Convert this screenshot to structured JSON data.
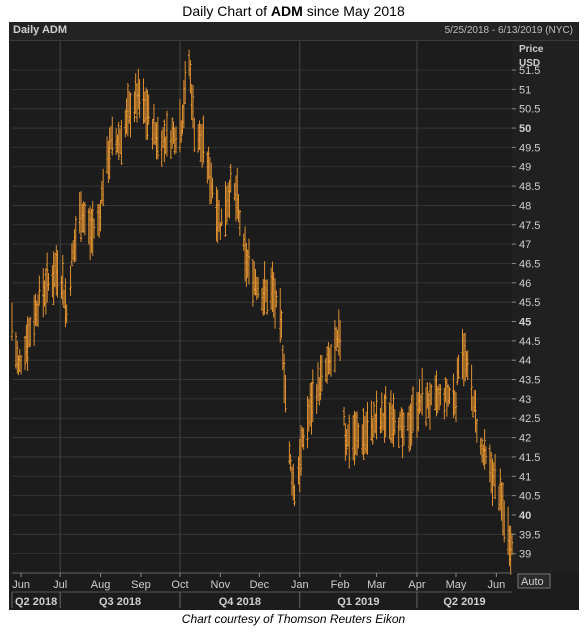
{
  "title": {
    "prefix": "Daily Chart of ",
    "ticker": "ADM",
    "suffix": " since May 2018"
  },
  "caption": "Chart courtesy of Thomson Reuters Eikon",
  "colors": {
    "background": "#1c1c1c",
    "bars": "#f39c32",
    "grid": "#3a3a3a",
    "text": "#cfcfcf"
  },
  "chart_data": {
    "type": "ohlc",
    "chart_label": "Daily ADM",
    "date_range": "5/25/2018 - 6/13/2019 (NYC)",
    "y_axis_title": [
      "Price",
      "USD"
    ],
    "ylim": [
      38.5,
      52.25
    ],
    "y_ticks": [
      39,
      39.5,
      40,
      40.5,
      41,
      41.5,
      42,
      42.5,
      43,
      43.5,
      44,
      44.5,
      45,
      45.5,
      46,
      46.5,
      47,
      47.5,
      48,
      48.5,
      49,
      49.5,
      50,
      50.5,
      51,
      51.5
    ],
    "y_ticks_bold": [
      40,
      45,
      50
    ],
    "scale_button": "Auto",
    "x_range": [
      "2018-05-25",
      "2019-06-13"
    ],
    "month_ticks": [
      {
        "label": "Jun",
        "date": "2018-06-01"
      },
      {
        "label": "Jul",
        "date": "2018-07-01"
      },
      {
        "label": "Aug",
        "date": "2018-08-01"
      },
      {
        "label": "Sep",
        "date": "2018-09-01"
      },
      {
        "label": "Oct",
        "date": "2018-10-01"
      },
      {
        "label": "Nov",
        "date": "2018-11-01"
      },
      {
        "label": "Dec",
        "date": "2018-12-01"
      },
      {
        "label": "Jan",
        "date": "2019-01-01"
      },
      {
        "label": "Feb",
        "date": "2019-02-01"
      },
      {
        "label": "Mar",
        "date": "2019-03-01"
      },
      {
        "label": "Apr",
        "date": "2019-04-01"
      },
      {
        "label": "May",
        "date": "2019-05-01"
      },
      {
        "label": "Jun",
        "date": "2019-06-01"
      }
    ],
    "quarters": [
      {
        "label": "Q2 2018",
        "start": "2018-05-25",
        "end": "2018-07-01"
      },
      {
        "label": "Q3 2018",
        "start": "2018-07-01",
        "end": "2018-10-01"
      },
      {
        "label": "Q4 2018",
        "start": "2018-10-01",
        "end": "2019-01-01"
      },
      {
        "label": "Q1 2019",
        "start": "2019-01-01",
        "end": "2019-04-01"
      },
      {
        "label": "Q2 2019",
        "start": "2019-04-01",
        "end": "2019-06-13"
      }
    ],
    "price_path": [
      [
        "2018-05-25",
        45.0
      ],
      [
        "2018-05-30",
        43.8
      ],
      [
        "2018-06-08",
        44.8
      ],
      [
        "2018-06-15",
        45.6
      ],
      [
        "2018-06-22",
        46.0
      ],
      [
        "2018-06-29",
        46.4
      ],
      [
        "2018-07-03",
        46.0
      ],
      [
        "2018-07-06",
        45.2
      ],
      [
        "2018-07-10",
        46.6
      ],
      [
        "2018-07-17",
        47.9
      ],
      [
        "2018-07-24",
        47.3
      ],
      [
        "2018-07-31",
        47.6
      ],
      [
        "2018-08-03",
        48.6
      ],
      [
        "2018-08-09",
        49.6
      ],
      [
        "2018-08-16",
        49.7
      ],
      [
        "2018-08-24",
        50.5
      ],
      [
        "2018-08-30",
        50.8
      ],
      [
        "2018-09-07",
        50.3
      ],
      [
        "2018-09-14",
        49.7
      ],
      [
        "2018-09-21",
        49.7
      ],
      [
        "2018-09-28",
        49.9
      ],
      [
        "2018-10-02",
        50.1
      ],
      [
        "2018-10-05",
        51.0
      ],
      [
        "2018-10-08",
        51.7
      ],
      [
        "2018-10-12",
        50.0
      ],
      [
        "2018-10-19",
        49.5
      ],
      [
        "2018-10-26",
        48.5
      ],
      [
        "2018-11-01",
        47.5
      ],
      [
        "2018-11-09",
        48.5
      ],
      [
        "2018-11-14",
        48.1
      ],
      [
        "2018-11-20",
        46.6
      ],
      [
        "2018-11-26",
        46.2
      ],
      [
        "2018-12-04",
        45.7
      ],
      [
        "2018-12-11",
        45.8
      ],
      [
        "2018-12-18",
        44.8
      ],
      [
        "2018-12-24",
        41.5
      ],
      [
        "2018-12-28",
        40.6
      ],
      [
        "2019-01-04",
        42.0
      ],
      [
        "2019-01-11",
        43.0
      ],
      [
        "2019-01-18",
        43.5
      ],
      [
        "2019-01-25",
        44.0
      ],
      [
        "2019-02-01",
        44.6
      ],
      [
        "2019-02-05",
        42.0
      ],
      [
        "2019-02-12",
        42.0
      ],
      [
        "2019-02-20",
        42.1
      ],
      [
        "2019-02-28",
        42.4
      ],
      [
        "2019-03-07",
        42.5
      ],
      [
        "2019-03-15",
        42.6
      ],
      [
        "2019-03-22",
        42.0
      ],
      [
        "2019-03-29",
        42.6
      ],
      [
        "2019-04-05",
        43.0
      ],
      [
        "2019-04-12",
        42.9
      ],
      [
        "2019-04-19",
        43.0
      ],
      [
        "2019-04-26",
        43.1
      ],
      [
        "2019-05-01",
        43.0
      ],
      [
        "2019-05-03",
        44.0
      ],
      [
        "2019-05-06",
        44.3
      ],
      [
        "2019-05-13",
        43.2
      ],
      [
        "2019-05-20",
        41.7
      ],
      [
        "2019-05-27",
        41.2
      ],
      [
        "2019-06-03",
        40.6
      ],
      [
        "2019-06-10",
        39.5
      ],
      [
        "2019-06-13",
        39.2
      ]
    ],
    "bar_range_base": 0.55
  }
}
